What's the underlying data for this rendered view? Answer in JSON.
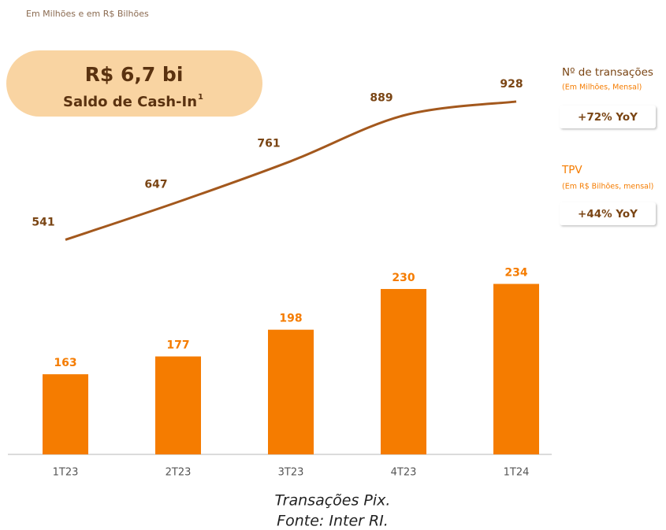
{
  "subtitle": "Em Milhões e em R$ Bilhões",
  "callout": {
    "value": "R$ 6,7 bi",
    "label": "Saldo de Cash-In",
    "footnote": "1"
  },
  "chart_data": {
    "type": "bar",
    "categories": [
      "1T23",
      "2T23",
      "3T23",
      "4T23",
      "1T24"
    ],
    "series": [
      {
        "name": "TPV",
        "unit": "(Em R$ Bilhões, mensal)",
        "growth": "+44% YoY",
        "type": "bar",
        "color": "#f57c00",
        "values": [
          163,
          177,
          198,
          230,
          234
        ]
      },
      {
        "name": "Nº de transações",
        "unit": "(Em Milhões, Mensal)",
        "growth": "+72% YoY",
        "type": "line",
        "axis": "y2",
        "color": "#a3581d",
        "values": [
          541,
          647,
          761,
          889,
          928
        ]
      }
    ],
    "ylim": [
      100,
      420
    ],
    "y2lim": [
      -60,
      1080
    ]
  },
  "caption": [
    "Transações Pix.",
    "Fonte: Inter RI."
  ]
}
